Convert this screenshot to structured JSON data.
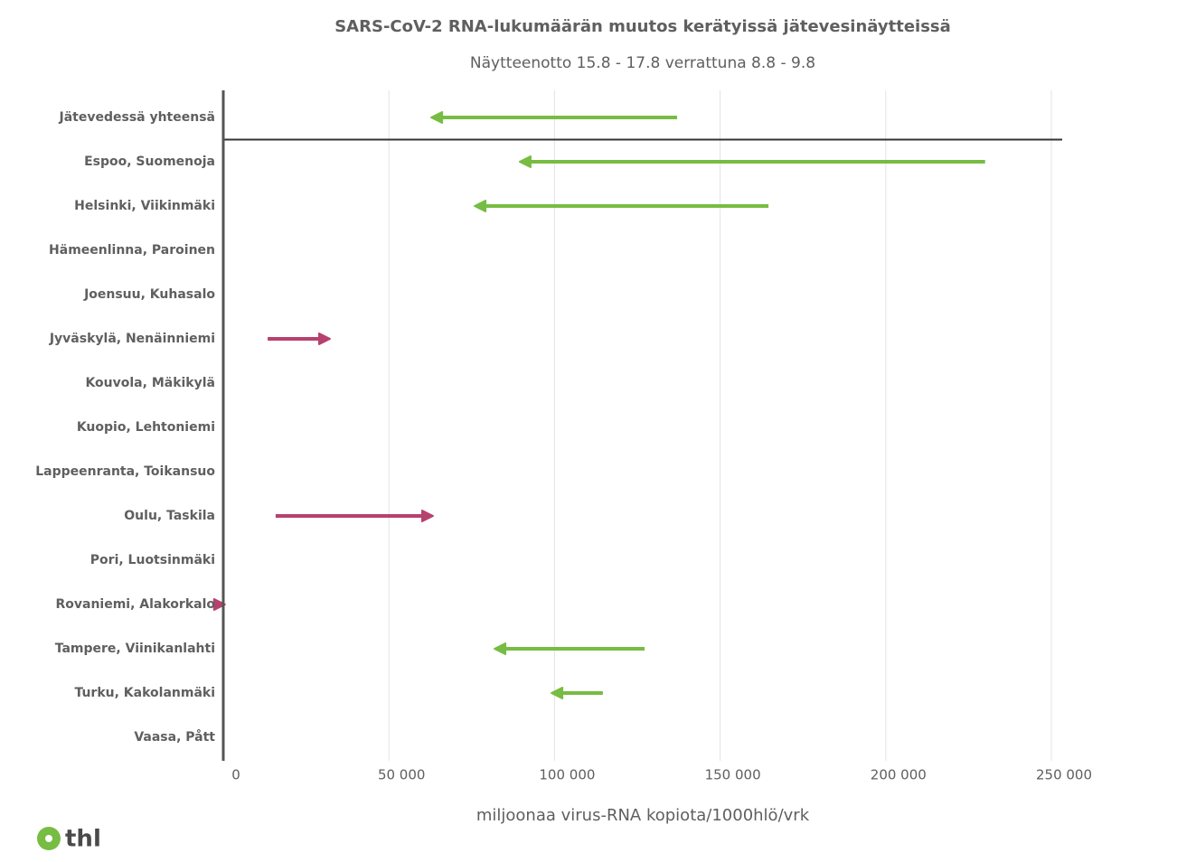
{
  "chart_data": {
    "type": "arrow",
    "title": "SARS-CoV-2 RNA-lukumäärän muutos kerätyissä jätevesinäytteissä",
    "subtitle": "Näytteenotto 15.8 - 17.8 verrattuna 8.8 - 9.8",
    "x_label": "miljoonaa virus-RNA kopiota/1000hlö/vrk",
    "categories": [
      "Jätevedessä yhteensä",
      "Espoo, Suomenoja",
      "Helsinki, Viikinmäki",
      "Hämeenlinna, Paroinen",
      "Joensuu, Kuhasalo",
      "Jyväskylä, Nenäinniemi",
      "Kouvola, Mäkikylä",
      "Kuopio, Lehtoniemi",
      "Lappeenranta, Toikansuo",
      "Oulu, Taskila",
      "Pori, Luotsinmäki",
      "Rovaniemi, Alakorkalo",
      "Tampere, Viinikanlahti",
      "Turku, Kakolanmäki",
      "Vaasa, Pått"
    ],
    "start": [
      137000,
      230000,
      164600,
      null,
      null,
      13400,
      null,
      null,
      null,
      15800,
      null,
      100,
      127200,
      114600,
      null
    ],
    "end": [
      62800,
      89500,
      75900,
      null,
      null,
      32200,
      null,
      null,
      null,
      63300,
      null,
      500,
      81900,
      99100,
      null
    ],
    "decrease_color": "#77bc43",
    "increase_color": "#b7416e",
    "xlim": [
      0,
      253000
    ],
    "xticks": [
      0,
      {
        "value": 50000,
        "label": "50 000"
      },
      {
        "value": 100000,
        "label": "100 000"
      },
      {
        "value": 150000,
        "label": "150 000"
      },
      {
        "value": 200000,
        "label": "200 000"
      },
      {
        "value": 250000,
        "label": "250 000"
      }
    ],
    "grid": true
  },
  "footer": {
    "logo": "thl"
  }
}
